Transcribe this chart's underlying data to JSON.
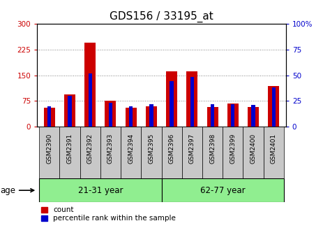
{
  "title": "GDS156 / 33195_at",
  "samples": [
    "GSM2390",
    "GSM2391",
    "GSM2392",
    "GSM2393",
    "GSM2394",
    "GSM2395",
    "GSM2396",
    "GSM2397",
    "GSM2398",
    "GSM2399",
    "GSM2400",
    "GSM2401"
  ],
  "counts": [
    55,
    95,
    245,
    75,
    55,
    60,
    162,
    162,
    58,
    68,
    58,
    118
  ],
  "percentiles": [
    20,
    30,
    52,
    23,
    20,
    22,
    44,
    48,
    22,
    22,
    21,
    38
  ],
  "group1_label": "21-31 year",
  "group2_label": "62-77 year",
  "group1_count": 6,
  "group2_count": 6,
  "age_label": "age",
  "ylim_left": [
    0,
    300
  ],
  "ylim_right": [
    0,
    100
  ],
  "yticks_left": [
    0,
    75,
    150,
    225,
    300
  ],
  "yticks_right": [
    0,
    25,
    50,
    75,
    100
  ],
  "bar_color_red": "#cc0000",
  "bar_color_blue": "#0000cc",
  "group_bg_color": "#90ee90",
  "xlabel_bg_color": "#c8c8c8",
  "legend_red_label": "count",
  "legend_blue_label": "percentile rank within the sample",
  "title_fontsize": 11,
  "tick_fontsize": 7.5,
  "red_bar_width": 0.55,
  "blue_bar_width": 0.18
}
